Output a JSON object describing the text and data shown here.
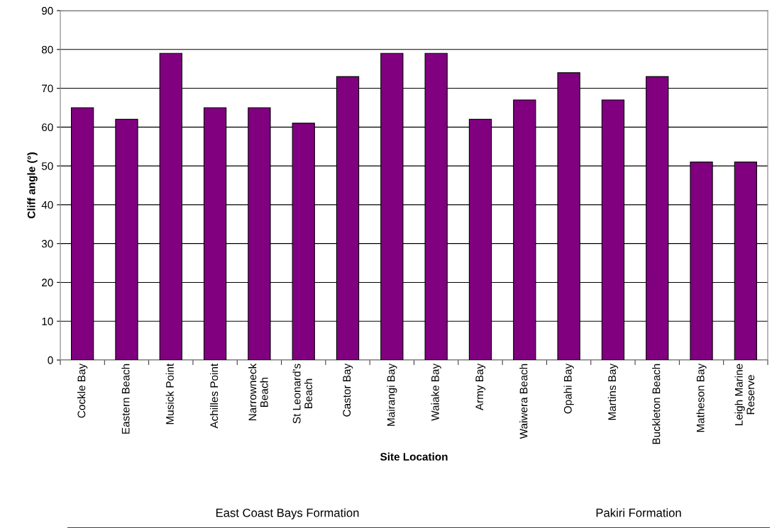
{
  "chart_data": {
    "type": "bar",
    "categories": [
      "Cockle Bay",
      "Eastern Beach",
      "Musick Point",
      "Achilles Point",
      "Narrowneck\nBeach",
      "St Leonard's\nBeach",
      "Castor Bay",
      "Mairangi Bay",
      "Waiake Bay",
      "Army Bay",
      "Waiwera Beach",
      "Opahi Bay",
      "Martins Bay",
      "Buckleton Beach",
      "Matheson Bay",
      "Leigh Marine\nReserve"
    ],
    "values": [
      65,
      62,
      79,
      65,
      65,
      61,
      73,
      79,
      79,
      62,
      67,
      74,
      67,
      73,
      51,
      51
    ],
    "color": "#800080",
    "xlabel": "Site Location",
    "ylabel": "Cliff angle (°)",
    "ylim": [
      0,
      90
    ],
    "yticks": [
      0,
      10,
      20,
      30,
      40,
      50,
      60,
      70,
      80,
      90
    ],
    "grid": "y",
    "annotations": [
      "East Coast Bays Formation",
      "Pakiri Formation"
    ]
  }
}
